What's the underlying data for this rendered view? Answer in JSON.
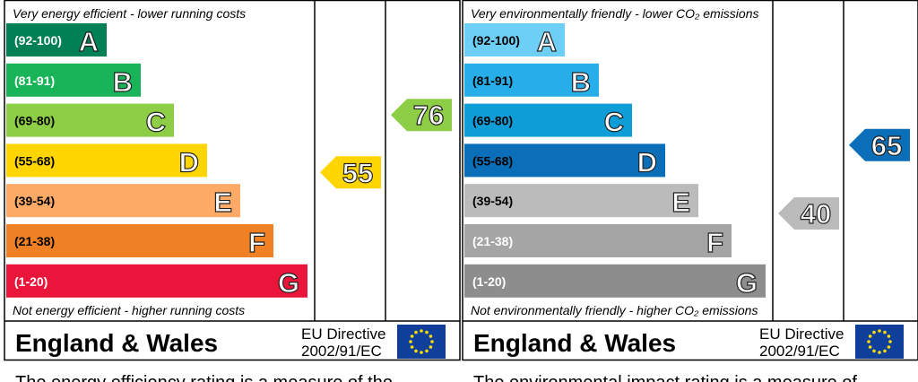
{
  "panels": [
    {
      "top_note": "Very energy efficient - lower running costs",
      "bottom_note": "Not energy efficient - higher running costs",
      "bands": [
        {
          "range": "(92-100)",
          "letter": "A",
          "color": "#008054",
          "text_color": "#ffffff"
        },
        {
          "range": "(81-91)",
          "letter": "B",
          "color": "#19b459",
          "text_color": "#ffffff"
        },
        {
          "range": "(69-80)",
          "letter": "C",
          "color": "#8dce46",
          "text_color": "#000000"
        },
        {
          "range": "(55-68)",
          "letter": "D",
          "color": "#ffd500",
          "text_color": "#000000"
        },
        {
          "range": "(39-54)",
          "letter": "E",
          "color": "#fcaa65",
          "text_color": "#000000"
        },
        {
          "range": "(21-38)",
          "letter": "F",
          "color": "#ef8023",
          "text_color": "#000000"
        },
        {
          "range": "(1-20)",
          "letter": "G",
          "color": "#e9153b",
          "text_color": "#ffffff"
        }
      ],
      "current": {
        "value": 55,
        "color": "#ffd500"
      },
      "potential": {
        "value": 76,
        "color": "#8dce46"
      },
      "region": "England & Wales",
      "directive": [
        "EU Directive",
        "2002/91/EC"
      ],
      "footer": "The energy efficiency rating is a measure of the"
    },
    {
      "top_note": "Very environmentally friendly - lower CO₂ emissions",
      "bottom_note": "Not environmentally friendly - higher CO₂ emissions",
      "bands": [
        {
          "range": "(92-100)",
          "letter": "A",
          "color": "#6dcff6",
          "text_color": "#000000"
        },
        {
          "range": "(81-91)",
          "letter": "B",
          "color": "#27aee8",
          "text_color": "#000000"
        },
        {
          "range": "(69-80)",
          "letter": "C",
          "color": "#0f9dd8",
          "text_color": "#000000"
        },
        {
          "range": "(55-68)",
          "letter": "D",
          "color": "#0a6fb8",
          "text_color": "#000000"
        },
        {
          "range": "(39-54)",
          "letter": "E",
          "color": "#bbbbbb",
          "text_color": "#000000"
        },
        {
          "range": "(21-38)",
          "letter": "F",
          "color": "#a5a5a5",
          "text_color": "#ffffff"
        },
        {
          "range": "(1-20)",
          "letter": "G",
          "color": "#8d8d8d",
          "text_color": "#ffffff"
        }
      ],
      "current": {
        "value": 40,
        "color": "#bbbbbb"
      },
      "potential": {
        "value": 65,
        "color": "#0a6fb8"
      },
      "region": "England & Wales",
      "directive": [
        "EU Directive",
        "2002/91/EC"
      ],
      "footer": "The environmental impact rating is a measure of"
    }
  ]
}
